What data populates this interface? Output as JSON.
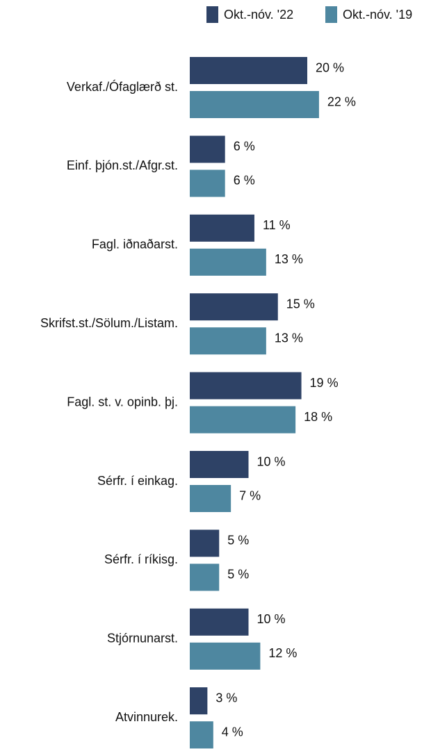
{
  "chart_data": {
    "type": "bar",
    "orientation": "horizontal",
    "categories": [
      "Verkaf./Ófaglærð st.",
      "Einf. þjón.st./Afgr.st.",
      "Fagl. iðnaðarst.",
      "Skrifst.st./Sölum./Listam.",
      "Fagl. st. v. opinb. þj.",
      "Sérfr. í einkag.",
      "Sérfr. í ríkisg.",
      "Stjórnunarst.",
      "Atvinnurek."
    ],
    "series": [
      {
        "name": "Okt.-nóv. '22",
        "color": "#2e4266",
        "values": [
          20,
          6,
          11,
          15,
          19,
          10,
          5,
          10,
          3
        ],
        "value_labels": [
          "20 %",
          "6 %",
          "11 %",
          "15 %",
          "19 %",
          "10 %",
          "5 %",
          "10 %",
          "3 %"
        ]
      },
      {
        "name": "Okt.-nóv. '19",
        "color": "#4e87a0",
        "values": [
          22,
          6,
          13,
          13,
          18,
          7,
          5,
          12,
          4
        ],
        "value_labels": [
          "22 %",
          "6 %",
          "13 %",
          "13 %",
          "18 %",
          "7 %",
          "5 %",
          "12 %",
          "4 %"
        ]
      }
    ],
    "xlim": [
      0,
      40
    ],
    "legend": "top-right"
  }
}
